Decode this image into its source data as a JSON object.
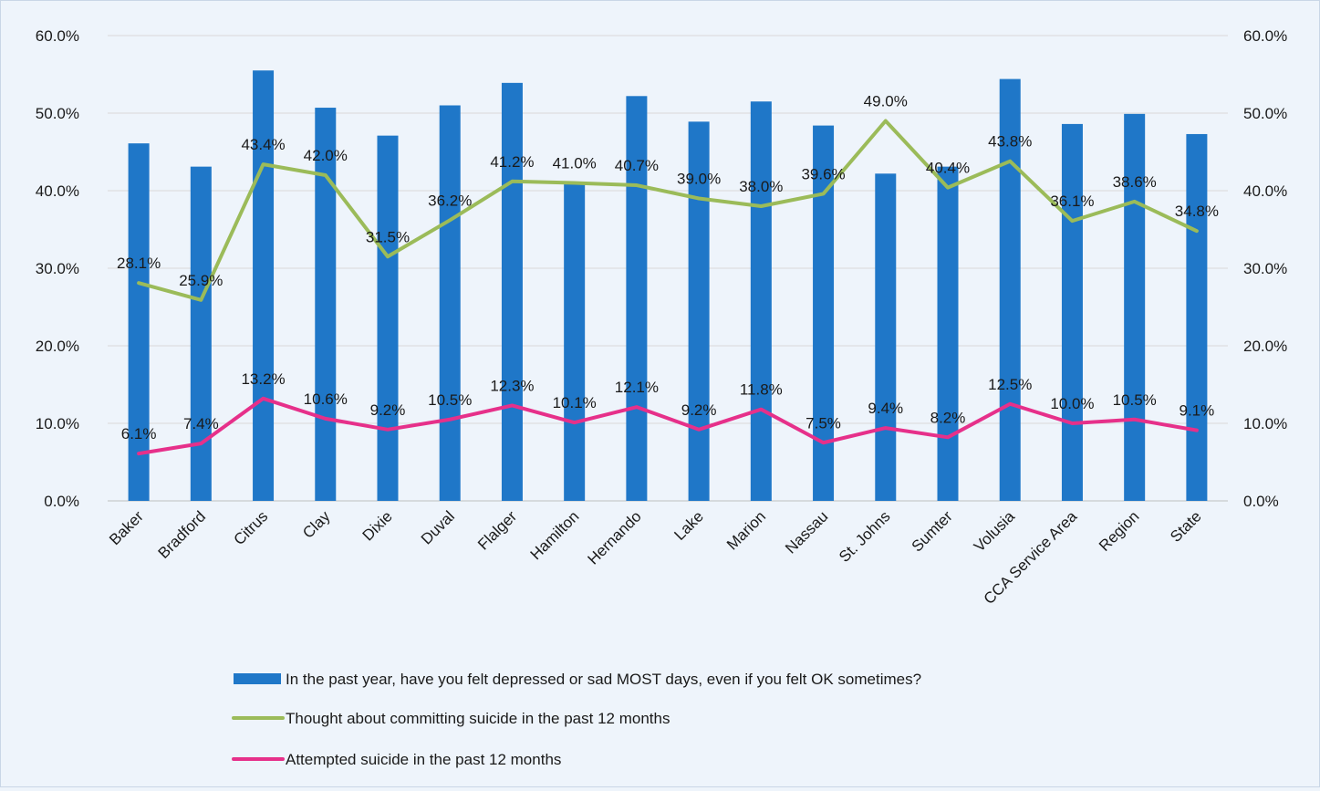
{
  "chart_data": {
    "type": "bar",
    "categories": [
      "Baker",
      "Bradford",
      "Citrus",
      "Clay",
      "Dixie",
      "Duval",
      "Flalger",
      "Hamilton",
      "Hernando",
      "Lake",
      "Marion",
      "Nassau",
      "St. Johns",
      "Sumter",
      "Volusia",
      "CCA Service Area",
      "Region",
      "State"
    ],
    "ylim": [
      0,
      60
    ],
    "y_ticks": [
      "0.0%",
      "10.0%",
      "20.0%",
      "30.0%",
      "40.0%",
      "50.0%",
      "60.0%"
    ],
    "y_tick_values": [
      0,
      10,
      20,
      30,
      40,
      50,
      60
    ],
    "secondary_y_ticks": [
      "0.0%",
      "10.0%",
      "20.0%",
      "30.0%",
      "40.0%",
      "50.0%",
      "60.0%"
    ],
    "grid": true,
    "legend_position": "bottom",
    "series": [
      {
        "name": "In the past year, have you felt depressed or sad MOST days, even if you felt OK sometimes?",
        "type": "bar",
        "color": "#1f77c8",
        "values": [
          46.1,
          43.1,
          55.5,
          50.7,
          47.1,
          51.0,
          53.9,
          41.0,
          52.2,
          48.9,
          51.5,
          48.4,
          42.2,
          43.1,
          54.4,
          48.6,
          49.9,
          47.3
        ],
        "labels": []
      },
      {
        "name": "Thought about committing suicide in the past 12 months",
        "type": "line",
        "color": "#9bbb59",
        "values": [
          28.1,
          25.9,
          43.4,
          42.0,
          31.5,
          36.2,
          41.2,
          41.0,
          40.7,
          39.0,
          38.0,
          39.6,
          49.0,
          40.4,
          43.8,
          36.1,
          38.6,
          34.8
        ],
        "labels": [
          "28.1%",
          "25.9%",
          "43.4%",
          "42.0%",
          "31.5%",
          "36.2%",
          "41.2%",
          "41.0%",
          "40.7%",
          "39.0%",
          "38.0%",
          "39.6%",
          "49.0%",
          "40.4%",
          "43.8%",
          "36.1%",
          "38.6%",
          "34.8%"
        ]
      },
      {
        "name": "Attempted suicide in the past 12 months",
        "type": "line",
        "color": "#e6308a",
        "values": [
          6.1,
          7.4,
          13.2,
          10.6,
          9.2,
          10.5,
          12.3,
          10.1,
          12.1,
          9.2,
          11.8,
          7.5,
          9.4,
          8.2,
          12.5,
          10.0,
          10.5,
          9.1
        ],
        "labels": [
          "6.1%",
          "7.4%",
          "13.2%",
          "10.6%",
          "9.2%",
          "10.5%",
          "12.3%",
          "10.1%",
          "12.1%",
          "9.2%",
          "11.8%",
          "7.5%",
          "9.4%",
          "8.2%",
          "12.5%",
          "10.0%",
          "10.5%",
          "9.1%"
        ]
      }
    ]
  }
}
